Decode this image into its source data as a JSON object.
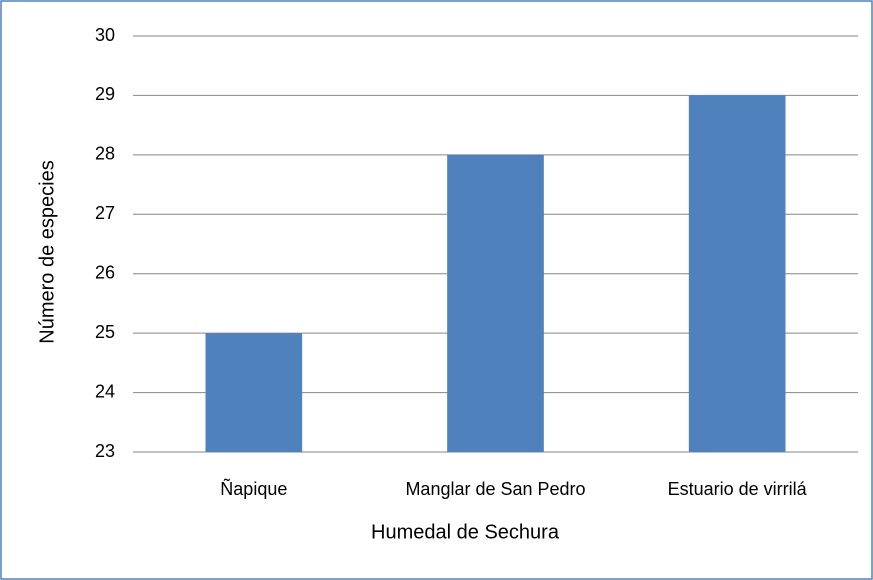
{
  "chart_data": {
    "type": "bar",
    "x_label": "Humedal de Sechura",
    "y_label": "Número de especies",
    "categories": [
      "Ñapique",
      "Manglar de San Pedro",
      "Estuario de virrilá"
    ],
    "values": [
      25,
      28,
      29
    ],
    "color": "#4f81bd",
    "ylim": [
      23,
      30
    ],
    "yticks": [
      23,
      24,
      25,
      26,
      27,
      28,
      29,
      30
    ],
    "grid": true
  }
}
